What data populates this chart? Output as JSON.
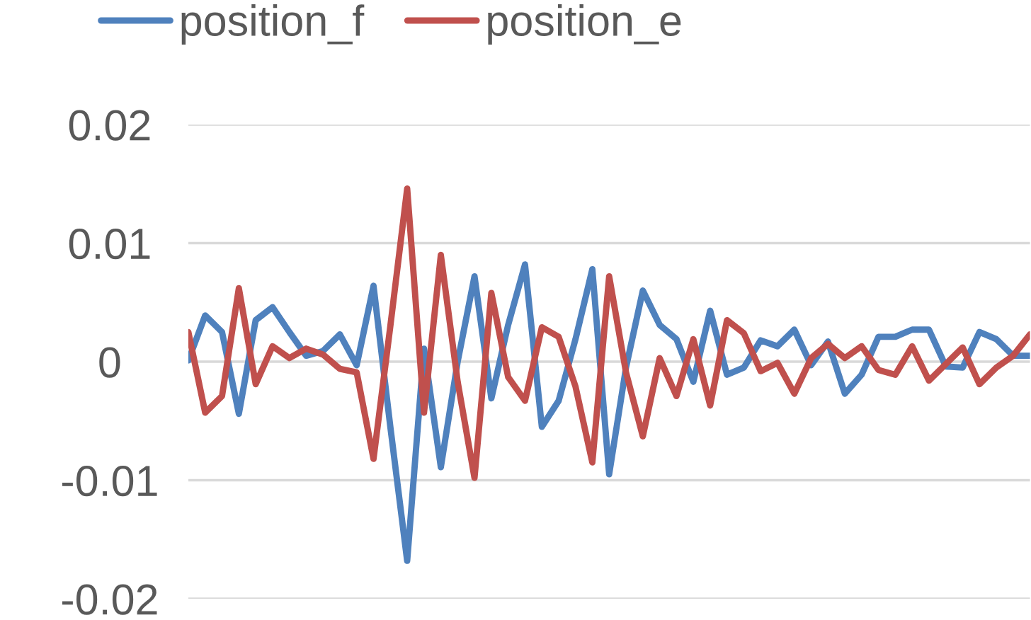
{
  "chart_data": {
    "type": "line",
    "categories": [
      null,
      null,
      null,
      null,
      null,
      null,
      null,
      null,
      null,
      null,
      null,
      null,
      null,
      null,
      null,
      null,
      null,
      null,
      null,
      null,
      null,
      null,
      null,
      null,
      null,
      null,
      null,
      null,
      null,
      null,
      null,
      null,
      null,
      null,
      null,
      null,
      null,
      null,
      null,
      null,
      null,
      null,
      null,
      null,
      null,
      null,
      null,
      null,
      null,
      null,
      null
    ],
    "series": [
      {
        "name": "position_f",
        "color": "#4f81bd",
        "values": [
          0.0001,
          0.0039,
          0.0025,
          -0.0044,
          0.0035,
          0.0046,
          0.0025,
          0.0005,
          0.0009,
          0.0023,
          -0.0003,
          0.0064,
          -0.0055,
          -0.0168,
          0.0011,
          -0.0089,
          0.0,
          0.0072,
          -0.0031,
          0.0031,
          0.0082,
          -0.0055,
          -0.0033,
          0.0019,
          0.0078,
          -0.0095,
          -0.0005,
          0.006,
          0.0031,
          0.0019,
          -0.0017,
          0.0043,
          -0.0011,
          -0.0005,
          0.0018,
          0.0013,
          0.0027,
          -0.0003,
          0.0017,
          -0.0027,
          -0.0011,
          0.0021,
          0.0021,
          0.0027,
          0.0027,
          -0.0004,
          -0.0005,
          0.0025,
          0.0019,
          0.0005,
          0.0005
        ]
      },
      {
        "name": "position_e",
        "color": "#c0504d",
        "values": [
          0.0025,
          -0.0043,
          -0.0029,
          0.0062,
          -0.0019,
          0.0013,
          0.0003,
          0.0011,
          0.0006,
          -0.0006,
          -0.0009,
          -0.0082,
          0.003,
          0.0146,
          -0.0043,
          0.009,
          -0.0017,
          -0.0098,
          0.0058,
          -0.0013,
          -0.0033,
          0.0029,
          0.0021,
          -0.0021,
          -0.0085,
          0.0072,
          -0.0009,
          -0.0063,
          0.0003,
          -0.0029,
          0.0019,
          -0.0037,
          0.0035,
          0.0024,
          -0.0008,
          -0.0001,
          -0.0027,
          0.0003,
          0.0015,
          0.0003,
          0.0013,
          -0.0007,
          -0.0011,
          0.0013,
          -0.0016,
          -0.0002,
          0.0012,
          -0.0019,
          -0.0005,
          0.0005,
          0.0023
        ]
      }
    ],
    "ylim": [
      -0.02,
      0.02
    ],
    "yticks": [
      -0.02,
      -0.01,
      0,
      0.01,
      0.02
    ],
    "grid": "y",
    "legend": "top",
    "tick_labels": "y",
    "line_style": "solid",
    "marker": "none"
  }
}
